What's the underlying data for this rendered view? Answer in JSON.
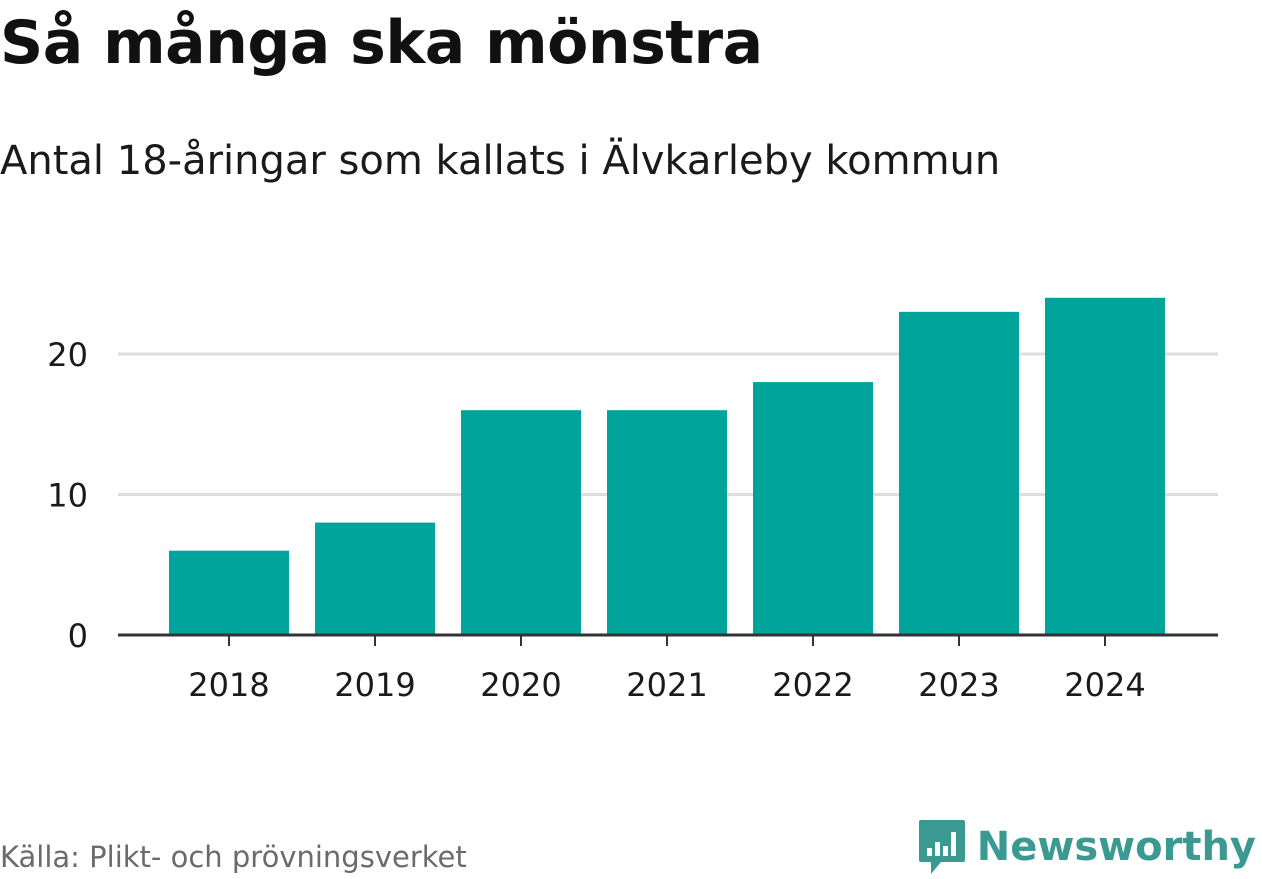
{
  "header": {
    "title": "Så många ska mönstra",
    "subtitle": "Antal 18-åringar som kallats i Älvkarleby kommun"
  },
  "footer": {
    "source": "Källa: Plikt- och prövningsverket",
    "brand_name": "Newsworthy",
    "brand_icon": "newsworthy-logo-icon"
  },
  "colors": {
    "bar": "#00a49a",
    "grid": "#dddddd",
    "axis": "#333333",
    "brand": "#3a9a91",
    "text": "#1a1a1a",
    "muted": "#6b6b6b"
  },
  "chart_data": {
    "type": "bar",
    "categories": [
      "2018",
      "2019",
      "2020",
      "2021",
      "2022",
      "2023",
      "2024"
    ],
    "values": [
      6,
      8,
      16,
      16,
      18,
      23,
      24
    ],
    "title": "Så många ska mönstra",
    "subtitle": "Antal 18-åringar som kallats i Älvkarleby kommun",
    "xlabel": "",
    "ylabel": "",
    "ylim": [
      0,
      25
    ],
    "yticks": [
      0,
      10,
      20
    ],
    "grid": true,
    "legend": "none"
  }
}
